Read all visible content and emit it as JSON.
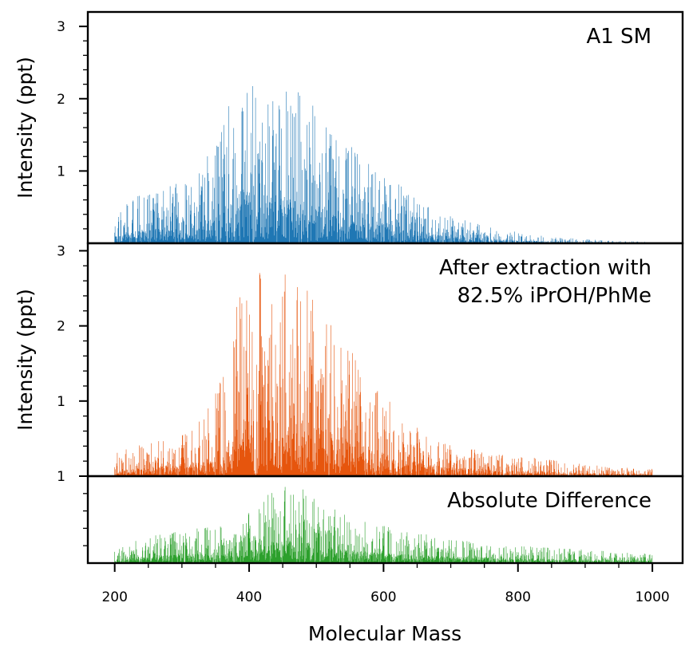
{
  "chart_data": {
    "type": "bar",
    "shared_x": {
      "label": "Molecular Mass",
      "range": [
        160,
        1045
      ],
      "ticks": [
        200,
        400,
        600,
        800,
        1000
      ],
      "tick_labels": [
        "200",
        "400",
        "600",
        "800",
        "1000"
      ]
    },
    "panels": [
      {
        "annotation": [
          "A1 SM"
        ],
        "ylabel": "Intensity (ppt)",
        "ylim": [
          0,
          3.2
        ],
        "yticks": [
          1,
          2,
          3
        ],
        "ytick_labels": [
          "1",
          "2",
          "3"
        ],
        "color": "#1f77b4",
        "envelope": {
          "x": [
            200,
            230,
            260,
            290,
            320,
            350,
            370,
            390,
            410,
            430,
            450,
            470,
            490,
            520,
            550,
            580,
            610,
            640,
            670,
            700,
            750,
            800,
            850,
            900,
            950,
            990
          ],
          "y": [
            0.35,
            0.6,
            0.62,
            0.75,
            0.9,
            1.25,
            1.8,
            2.4,
            2.1,
            2.2,
            2.05,
            2.0,
            1.8,
            1.5,
            1.3,
            1.05,
            0.85,
            0.62,
            0.45,
            0.34,
            0.22,
            0.14,
            0.08,
            0.05,
            0.03,
            0.02
          ]
        }
      },
      {
        "annotation": [
          "After extraction with",
          "82.5% iPrOH/PhMe"
        ],
        "ylabel": "Intensity (ppt)",
        "ylim": [
          0,
          3.1
        ],
        "yticks": [
          1,
          2,
          3
        ],
        "ytick_labels": [
          "1",
          "2",
          "3"
        ],
        "color": "#e6550d",
        "envelope": {
          "x": [
            200,
            230,
            260,
            290,
            320,
            350,
            370,
            390,
            410,
            430,
            450,
            470,
            490,
            520,
            550,
            580,
            610,
            640,
            670,
            700,
            750,
            800,
            850,
            900,
            950,
            1000
          ],
          "y": [
            0.3,
            0.35,
            0.45,
            0.52,
            0.62,
            1.0,
            1.6,
            2.4,
            2.5,
            2.55,
            2.65,
            2.5,
            2.3,
            1.85,
            1.55,
            1.3,
            0.9,
            0.65,
            0.48,
            0.38,
            0.3,
            0.24,
            0.2,
            0.14,
            0.11,
            0.09
          ]
        }
      },
      {
        "annotation": [
          "Absolute Difference"
        ],
        "ylabel": "",
        "ylim": [
          0,
          1.0
        ],
        "yticks": [
          1
        ],
        "ytick_labels": [
          "1"
        ],
        "color": "#2ca02c",
        "envelope": {
          "x": [
            200,
            250,
            300,
            350,
            380,
            410,
            440,
            470,
            500,
            530,
            560,
            600,
            650,
            700,
            800,
            900,
            1000
          ],
          "y": [
            0.15,
            0.28,
            0.35,
            0.38,
            0.45,
            0.62,
            0.8,
            0.82,
            0.7,
            0.55,
            0.45,
            0.4,
            0.32,
            0.25,
            0.18,
            0.14,
            0.1
          ]
        }
      }
    ]
  }
}
